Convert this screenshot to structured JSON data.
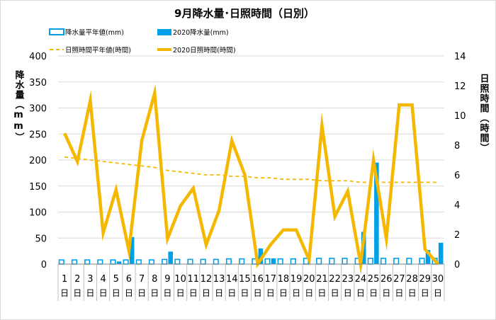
{
  "chart_data": {
    "type": "bar",
    "title": "9月降水量･日照時間（日別）",
    "left_axis_label": "降水量（mm）",
    "right_axis_label": "日照時間（時間）",
    "left_ylim": [
      0,
      400
    ],
    "left_ticks": [
      0,
      50,
      100,
      150,
      200,
      250,
      300,
      350,
      400
    ],
    "right_ylim": [
      0,
      14
    ],
    "right_ticks": [
      0,
      2,
      4,
      6,
      8,
      10,
      12,
      14
    ],
    "categories": [
      "1",
      "2",
      "3",
      "4",
      "5",
      "6",
      "7",
      "8",
      "9",
      "10",
      "11",
      "12",
      "13",
      "14",
      "15",
      "16",
      "17",
      "18",
      "19",
      "20",
      "21",
      "22",
      "23",
      "24",
      "25",
      "26",
      "27",
      "28",
      "29",
      "30"
    ],
    "category_suffix": "日",
    "legend": [
      {
        "label": "降水量平年値(mm)",
        "kind": "bar-outline"
      },
      {
        "label": "2020降水量(mm)",
        "kind": "bar-filled"
      },
      {
        "label": "日照時間平年値(時間)",
        "kind": "line-dashed"
      },
      {
        "label": "2020日照時間(時間)",
        "kind": "line-solid"
      }
    ],
    "colors": {
      "bar": "#00a0e9",
      "bar_outline": "#00a0e9",
      "line": "#f5b800",
      "line_normal": "#f5b800"
    },
    "series": [
      {
        "name": "降水量平年値(mm)",
        "axis": "left",
        "values": [
          8,
          8,
          8,
          8,
          8,
          8,
          8,
          8,
          9,
          9,
          9,
          9,
          9,
          10,
          10,
          10,
          10,
          10,
          10,
          11,
          11,
          11,
          11,
          11,
          11,
          11,
          11,
          11,
          11,
          11
        ]
      },
      {
        "name": "2020降水量(mm)",
        "axis": "left",
        "values": [
          0,
          0,
          0,
          0,
          5,
          52,
          0,
          0,
          24,
          0,
          0,
          0,
          0,
          0,
          0,
          30,
          11,
          0,
          0,
          0,
          0,
          0,
          0,
          62,
          195,
          0,
          0,
          0,
          27,
          41
        ]
      },
      {
        "name": "日照時間平年値(時間)",
        "axis": "right",
        "values": [
          7.2,
          7.1,
          7.0,
          6.9,
          6.8,
          6.7,
          6.6,
          6.5,
          6.3,
          6.2,
          6.1,
          6.0,
          6.0,
          5.9,
          5.9,
          5.8,
          5.8,
          5.7,
          5.7,
          5.7,
          5.6,
          5.6,
          5.6,
          5.5,
          5.5,
          5.5,
          5.5,
          5.5,
          5.5,
          5.5
        ]
      },
      {
        "name": "2020日照時間(時間)",
        "axis": "right",
        "values": [
          8.8,
          6.9,
          11.0,
          2.1,
          5.0,
          0.9,
          8.3,
          11.5,
          1.7,
          3.9,
          5.1,
          1.3,
          3.6,
          8.3,
          6.0,
          0.0,
          1.3,
          2.3,
          2.3,
          0.3,
          9.3,
          3.2,
          4.9,
          0.0,
          7.0,
          1.7,
          10.7,
          10.7,
          1.0,
          0.0
        ]
      }
    ]
  }
}
